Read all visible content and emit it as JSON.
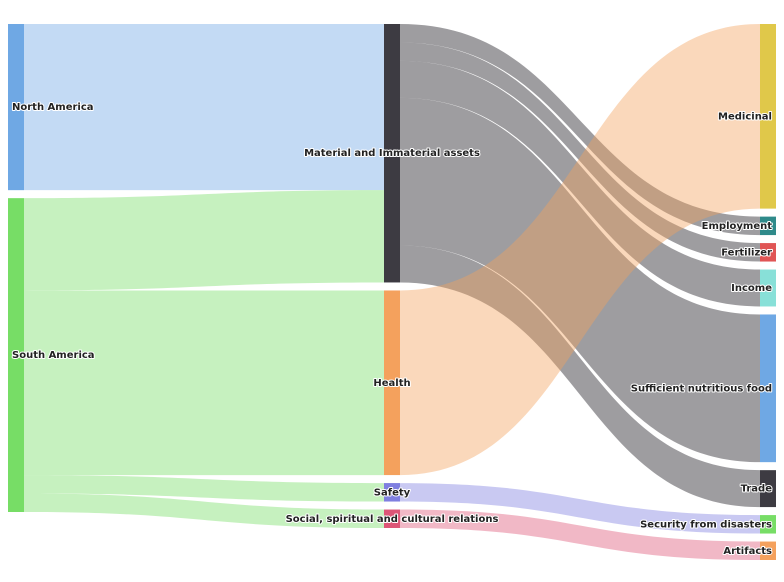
{
  "chart_data": {
    "type": "sankey",
    "columns": [
      [
        "North America",
        "South America"
      ],
      [
        "Material and Immaterial assets",
        "Health",
        "Safety",
        "Social, spiritual and cultural relations"
      ],
      [
        "Medicinal",
        "Employment",
        "Fertilizer",
        "Income",
        "Sufficient nutritious food",
        "Trade",
        "Security from disasters",
        "Artifacts"
      ]
    ],
    "nodes": [
      {
        "name": "North America",
        "label": "North America",
        "color": "#6fa8e4"
      },
      {
        "name": "South America",
        "label": "South America",
        "color": "#77dd66"
      },
      {
        "name": "Material and Immaterial assets",
        "label": "Material and Immaterial assets",
        "color": "#3d3b42"
      },
      {
        "name": "Health",
        "label": "Health",
        "color": "#f4a15d"
      },
      {
        "name": "Safety",
        "label": "Safety",
        "color": "#7f7fe0"
      },
      {
        "name": "Social, spiritual and cultural relations",
        "label": "Social, spiritual and cultural relations",
        "color": "#dd5577"
      },
      {
        "name": "Medicinal",
        "label": "Medicinal",
        "color": "#e0c84a"
      },
      {
        "name": "Employment",
        "label": "Employment",
        "color": "#2f8a8a"
      },
      {
        "name": "Fertilizer",
        "label": "Fertilizer",
        "color": "#e05555"
      },
      {
        "name": "Income",
        "label": "Income",
        "color": "#88e0d8"
      },
      {
        "name": "Sufficient nutritious food",
        "label": "Sufficient nutritious food",
        "color": "#6fa8e4"
      },
      {
        "name": "Trade",
        "label": "Trade",
        "color": "#3d3b42"
      },
      {
        "name": "Security from disasters",
        "label": "Security from disasters",
        "color": "#77dd66"
      },
      {
        "name": "Artifacts",
        "label": "Artifacts",
        "color": "#f4a15d"
      }
    ],
    "links": [
      {
        "source": "North America",
        "target": "Material and Immaterial assets",
        "value": 36,
        "color": "#6fa8e4"
      },
      {
        "source": "South America",
        "target": "Material and Immaterial assets",
        "value": 20,
        "color": "#77dd66"
      },
      {
        "source": "South America",
        "target": "Health",
        "value": 40,
        "color": "#77dd66"
      },
      {
        "source": "South America",
        "target": "Safety",
        "value": 4,
        "color": "#77dd66"
      },
      {
        "source": "South America",
        "target": "Social, spiritual and cultural relations",
        "value": 4,
        "color": "#77dd66"
      },
      {
        "source": "Material and Immaterial assets",
        "target": "Employment",
        "value": 4,
        "color": "#3d3b42"
      },
      {
        "source": "Material and Immaterial assets",
        "target": "Fertilizer",
        "value": 4,
        "color": "#3d3b42"
      },
      {
        "source": "Material and Immaterial assets",
        "target": "Income",
        "value": 8,
        "color": "#3d3b42"
      },
      {
        "source": "Material and Immaterial assets",
        "target": "Sufficient nutritious food",
        "value": 32,
        "color": "#3d3b42"
      },
      {
        "source": "Material and Immaterial assets",
        "target": "Trade",
        "value": 8,
        "color": "#3d3b42"
      },
      {
        "source": "Health",
        "target": "Medicinal",
        "value": 40,
        "color": "#f4a15d"
      },
      {
        "source": "Safety",
        "target": "Security from disasters",
        "value": 4,
        "color": "#7f7fe0"
      },
      {
        "source": "Social, spiritual and cultural relations",
        "target": "Artifacts",
        "value": 4,
        "color": "#dd5577"
      }
    ]
  }
}
